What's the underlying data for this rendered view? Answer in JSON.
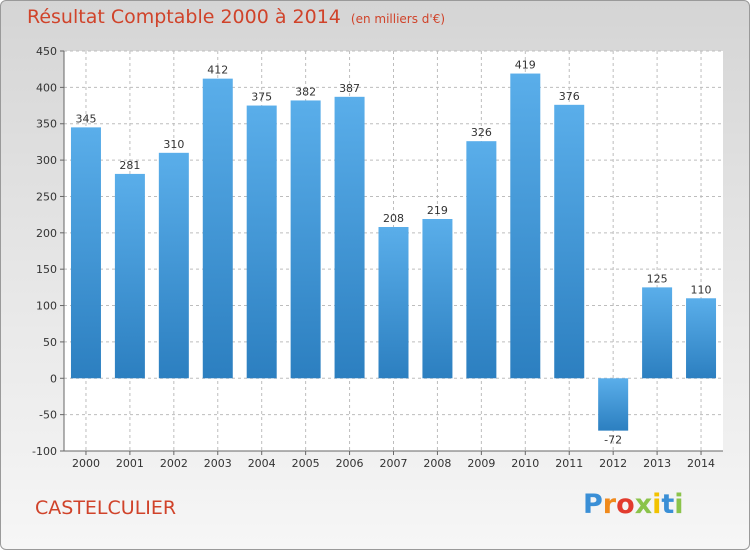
{
  "chart_data": {
    "type": "bar",
    "title": "Résultat Comptable 2000 à 2014",
    "subtitle": "(en milliers d'€)",
    "categories": [
      "2000",
      "2001",
      "2002",
      "2003",
      "2004",
      "2005",
      "2006",
      "2007",
      "2008",
      "2009",
      "2010",
      "2011",
      "2012",
      "2013",
      "2014"
    ],
    "values": [
      345,
      281,
      310,
      412,
      375,
      382,
      387,
      208,
      219,
      326,
      419,
      376,
      -72,
      125,
      110
    ],
    "ylim": [
      -100,
      450
    ],
    "yticks": [
      -100,
      -50,
      0,
      50,
      100,
      150,
      200,
      250,
      300,
      350,
      400,
      450
    ],
    "xlabel": "",
    "ylabel": "",
    "grid": true,
    "colors": {
      "bar_light": "#5aaeea",
      "bar_dark": "#2c7fc0",
      "title": "#d0432a"
    }
  },
  "location": "CASTELCULIER",
  "brand": {
    "letters": [
      "P",
      "r",
      "o",
      "x",
      "i",
      "t",
      "i"
    ],
    "colors": [
      "#3a8fd6",
      "#f08a1c",
      "#e23b2e",
      "#8bc34a",
      "#f2c200",
      "#3a8fd6",
      "#8bc34a"
    ]
  }
}
